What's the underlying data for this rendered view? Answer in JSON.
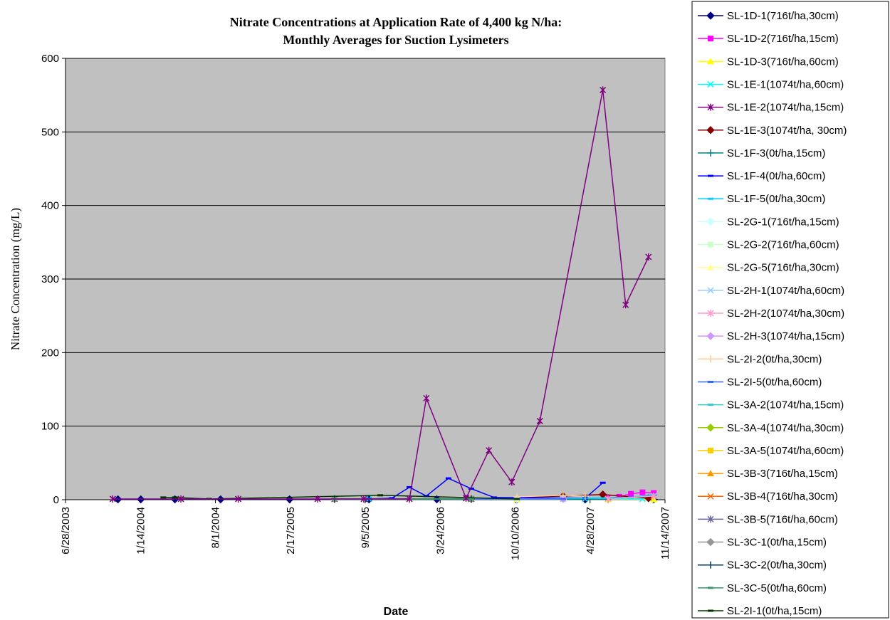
{
  "chart_data": {
    "type": "line",
    "title": [
      "Nitrate Concentrations at Application Rate of 4,400 kg N/ha:",
      "Monthly Averages for Suction Lysimeters"
    ],
    "xlabel": "Date",
    "ylabel": "Nitrate Concentration (mg/L)",
    "ylim": [
      0,
      600
    ],
    "yticks": [
      0,
      100,
      200,
      300,
      400,
      500,
      600
    ],
    "xlim": [
      "2003-06-28",
      "2007-11-14"
    ],
    "xticks": [
      "6/28/2003",
      "1/14/2004",
      "8/1/2004",
      "2/17/2005",
      "9/5/2005",
      "3/24/2006",
      "10/10/2006",
      "4/28/2007",
      "11/14/2007"
    ],
    "grid": "horizontal major",
    "plot_background": "#c0c0c0",
    "legend_position": "right",
    "series": [
      {
        "name": "SL-1D-1(716t/ha,30cm)",
        "color": "#000080",
        "marker": "diamond",
        "points": [
          [
            "2003-11-15",
            0.5
          ],
          [
            "2004-01-15",
            0.5
          ],
          [
            "2004-04-15",
            0.5
          ],
          [
            "2004-08-15",
            0.5
          ],
          [
            "2005-02-15",
            0.5
          ],
          [
            "2005-09-15",
            0.5
          ],
          [
            "2006-03-15",
            0.5
          ],
          [
            "2006-10-15",
            0.5
          ],
          [
            "2007-04-15",
            0.5
          ],
          [
            "2007-10-15",
            0.5
          ]
        ]
      },
      {
        "name": "SL-1D-2(716t/ha,15cm)",
        "color": "#ff00ff",
        "marker": "square",
        "points": [
          [
            "2007-06-15",
            2
          ],
          [
            "2007-07-15",
            4
          ],
          [
            "2007-08-15",
            8
          ],
          [
            "2007-09-15",
            10
          ],
          [
            "2007-10-15",
            9
          ]
        ]
      },
      {
        "name": "SL-1D-3(716t/ha,60cm)",
        "color": "#ffff00",
        "marker": "triangle",
        "points": [
          [
            "2006-10-15",
            0.5
          ],
          [
            "2007-06-15",
            0.5
          ],
          [
            "2007-10-15",
            0.5
          ]
        ]
      },
      {
        "name": "SL-1E-1(1074t/ha,60cm)",
        "color": "#00ffff",
        "marker": "x",
        "points": [
          [
            "2005-09-15",
            1
          ],
          [
            "2006-06-15",
            1
          ],
          [
            "2007-04-15",
            1
          ],
          [
            "2007-09-15",
            1
          ]
        ]
      },
      {
        "name": "SL-1E-2(1074t/ha,15cm)",
        "color": "#800080",
        "marker": "star",
        "points": [
          [
            "2003-11-01",
            1
          ],
          [
            "2004-05-01",
            1
          ],
          [
            "2004-10-01",
            1
          ],
          [
            "2005-05-01",
            1
          ],
          [
            "2005-09-01",
            1
          ],
          [
            "2006-01-01",
            1
          ],
          [
            "2006-02-15",
            138
          ],
          [
            "2006-06-01",
            2
          ],
          [
            "2006-08-01",
            67
          ],
          [
            "2006-10-01",
            24
          ],
          [
            "2006-12-15",
            107
          ],
          [
            "2007-06-01",
            557
          ],
          [
            "2007-08-01",
            265
          ],
          [
            "2007-10-01",
            330
          ]
        ]
      },
      {
        "name": "SL-1E-3(1074t/ha, 30cm)",
        "color": "#800000",
        "marker": "diamond",
        "points": [
          [
            "2006-06-15",
            1
          ],
          [
            "2007-02-15",
            5
          ],
          [
            "2007-06-01",
            7
          ],
          [
            "2007-10-01",
            2
          ]
        ]
      },
      {
        "name": "SL-1F-3(0t/ha,15cm)",
        "color": "#008080",
        "marker": "plus",
        "points": [
          [
            "2005-06-15",
            0.5
          ],
          [
            "2006-06-15",
            0.5
          ],
          [
            "2007-06-15",
            0.5
          ]
        ]
      },
      {
        "name": "SL-1F-4(0t/ha,60cm)",
        "color": "#0000ff",
        "marker": "dash",
        "points": [
          [
            "2005-09-15",
            1
          ],
          [
            "2005-11-15",
            2
          ],
          [
            "2006-01-01",
            17
          ],
          [
            "2006-02-15",
            5
          ],
          [
            "2006-04-15",
            29
          ],
          [
            "2006-06-15",
            15
          ],
          [
            "2006-08-15",
            3
          ],
          [
            "2007-04-15",
            2
          ],
          [
            "2007-06-01",
            23
          ]
        ]
      },
      {
        "name": "SL-1F-5(0t/ha,30cm)",
        "color": "#00ccff",
        "marker": "dash",
        "points": [
          [
            "2006-10-15",
            0.5
          ],
          [
            "2007-08-15",
            3
          ],
          [
            "2007-10-15",
            7
          ]
        ]
      },
      {
        "name": "SL-2G-1(716t/ha,15cm)",
        "color": "#ccffff",
        "marker": "diamond",
        "points": [
          [
            "2006-06-15",
            1
          ],
          [
            "2006-10-15",
            1
          ]
        ]
      },
      {
        "name": "SL-2G-2(716t/ha,60cm)",
        "color": "#ccffcc",
        "marker": "square",
        "points": [
          [
            "2006-06-15",
            1
          ],
          [
            "2007-02-15",
            1
          ]
        ]
      },
      {
        "name": "SL-2G-5(716t/ha,30cm)",
        "color": "#ffff99",
        "marker": "triangle",
        "points": [
          [
            "2006-06-15",
            1
          ],
          [
            "2007-02-15",
            1
          ]
        ]
      },
      {
        "name": "SL-2H-1(1074t/ha,60cm)",
        "color": "#99ccff",
        "marker": "x",
        "points": [
          [
            "2006-06-15",
            1
          ],
          [
            "2007-02-15",
            1
          ]
        ]
      },
      {
        "name": "SL-2H-2(1074t/ha,30cm)",
        "color": "#ff99cc",
        "marker": "star",
        "points": [
          [
            "2007-06-15",
            1
          ],
          [
            "2007-10-15",
            5
          ]
        ]
      },
      {
        "name": "SL-2H-3(1074t/ha,15cm)",
        "color": "#cc99ff",
        "marker": "diamond",
        "points": [
          [
            "2006-06-15",
            1
          ],
          [
            "2007-02-15",
            1
          ]
        ]
      },
      {
        "name": "SL-2I-2(0t/ha,30cm)",
        "color": "#ffcc99",
        "marker": "plus",
        "points": [
          [
            "2006-10-15",
            4
          ],
          [
            "2007-02-15",
            6
          ],
          [
            "2007-04-15",
            5
          ]
        ]
      },
      {
        "name": "SL-2I-5(0t/ha,60cm)",
        "color": "#3366ff",
        "marker": "dash",
        "points": [
          [
            "2006-06-15",
            1
          ],
          [
            "2007-02-15",
            1
          ]
        ]
      },
      {
        "name": "SL-3A-2(1074t/ha,15cm)",
        "color": "#33cccc",
        "marker": "dash",
        "points": [
          [
            "2005-06-15",
            1
          ],
          [
            "2006-06-15",
            1
          ]
        ]
      },
      {
        "name": "SL-3A-4(1074t/ha,30cm)",
        "color": "#99cc00",
        "marker": "diamond",
        "points": [
          [
            "2005-06-15",
            1
          ],
          [
            "2006-06-15",
            1
          ]
        ]
      },
      {
        "name": "SL-3A-5(1074t/ha,60cm)",
        "color": "#ffcc00",
        "marker": "square",
        "points": [
          [
            "2005-06-15",
            1
          ],
          [
            "2006-06-15",
            1
          ]
        ]
      },
      {
        "name": "SL-3B-3(716t/ha,15cm)",
        "color": "#ff9900",
        "marker": "triangle",
        "points": [
          [
            "2005-06-15",
            1
          ],
          [
            "2006-06-15",
            1
          ]
        ]
      },
      {
        "name": "SL-3B-4(716t/ha,30cm)",
        "color": "#ff6600",
        "marker": "x",
        "points": [
          [
            "2005-06-15",
            1
          ],
          [
            "2006-06-15",
            1
          ]
        ]
      },
      {
        "name": "SL-3B-5(716t/ha,60cm)",
        "color": "#666699",
        "marker": "star",
        "points": [
          [
            "2005-06-15",
            1
          ],
          [
            "2006-06-15",
            1
          ]
        ]
      },
      {
        "name": "SL-3C-1(0t/ha,15cm)",
        "color": "#969696",
        "marker": "diamond",
        "points": [
          [
            "2005-06-15",
            1
          ],
          [
            "2006-06-15",
            1
          ]
        ]
      },
      {
        "name": "SL-3C-2(0t/ha,30cm)",
        "color": "#003366",
        "marker": "plus",
        "points": [
          [
            "2005-06-15",
            1
          ],
          [
            "2006-06-15",
            1
          ]
        ]
      },
      {
        "name": "SL-3C-5(0t/ha,60cm)",
        "color": "#339966",
        "marker": "dash",
        "points": [
          [
            "2005-06-15",
            1
          ],
          [
            "2006-06-15",
            1
          ]
        ]
      },
      {
        "name": "SL-2I-1(0t/ha,15cm)",
        "color": "#003300",
        "marker": "dash",
        "points": [
          [
            "2004-03-15",
            3
          ],
          [
            "2004-04-15",
            3
          ],
          [
            "2004-07-15",
            1
          ],
          [
            "2005-10-15",
            6
          ],
          [
            "2006-10-15",
            1
          ]
        ]
      }
    ]
  }
}
